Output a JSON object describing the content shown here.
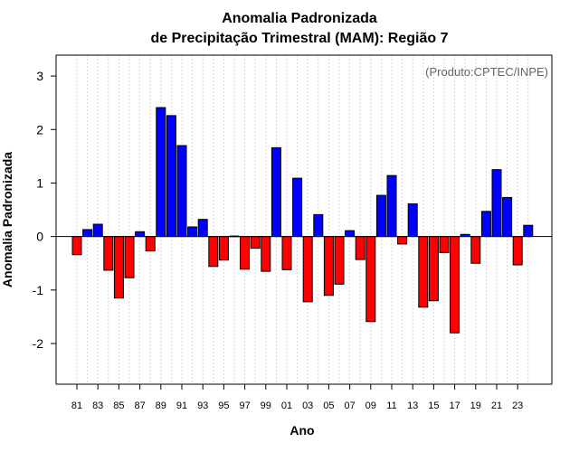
{
  "chart_data": {
    "type": "bar",
    "title_line1": "Anomalia Padronizada",
    "title_line2": "de Precipitação Trimestral (MAM): Região 7",
    "xlabel": "Ano",
    "ylabel": "Anomalia Padronizada",
    "credit": "(Produto:CPTEC/INPE)",
    "ylim": [
      -2.76,
      3.39
    ],
    "yticks": [
      -2,
      -1,
      0,
      1,
      2,
      3
    ],
    "grid": "vertical dotted",
    "positive_color": "#0000ff",
    "negative_color": "#ff0000",
    "categories": [
      "81",
      "82",
      "83",
      "84",
      "85",
      "86",
      "87",
      "88",
      "89",
      "90",
      "91",
      "92",
      "93",
      "94",
      "95",
      "96",
      "97",
      "98",
      "99",
      "00",
      "01",
      "02",
      "03",
      "04",
      "05",
      "06",
      "07",
      "08",
      "09",
      "10",
      "11",
      "12",
      "13",
      "14",
      "15",
      "16",
      "17",
      "18",
      "19",
      "20",
      "21",
      "22",
      "23",
      "24"
    ],
    "xtick_labels": [
      "81",
      "83",
      "85",
      "87",
      "89",
      "91",
      "93",
      "95",
      "97",
      "99",
      "01",
      "03",
      "05",
      "07",
      "09",
      "11",
      "13",
      "15",
      "17",
      "19",
      "21",
      "23"
    ],
    "values": [
      -0.34,
      0.13,
      0.23,
      -0.63,
      -1.15,
      -0.77,
      0.09,
      -0.27,
      2.41,
      2.26,
      1.7,
      0.18,
      0.32,
      -0.56,
      -0.44,
      0.01,
      -0.61,
      -0.22,
      -0.65,
      1.66,
      -0.62,
      1.09,
      -1.22,
      0.41,
      -1.1,
      -0.89,
      0.11,
      -0.43,
      -1.59,
      0.77,
      1.14,
      -0.14,
      0.61,
      -1.32,
      -1.2,
      -0.3,
      -1.8,
      0.04,
      -0.5,
      0.47,
      1.25,
      0.73,
      -0.53,
      0.21
    ]
  }
}
